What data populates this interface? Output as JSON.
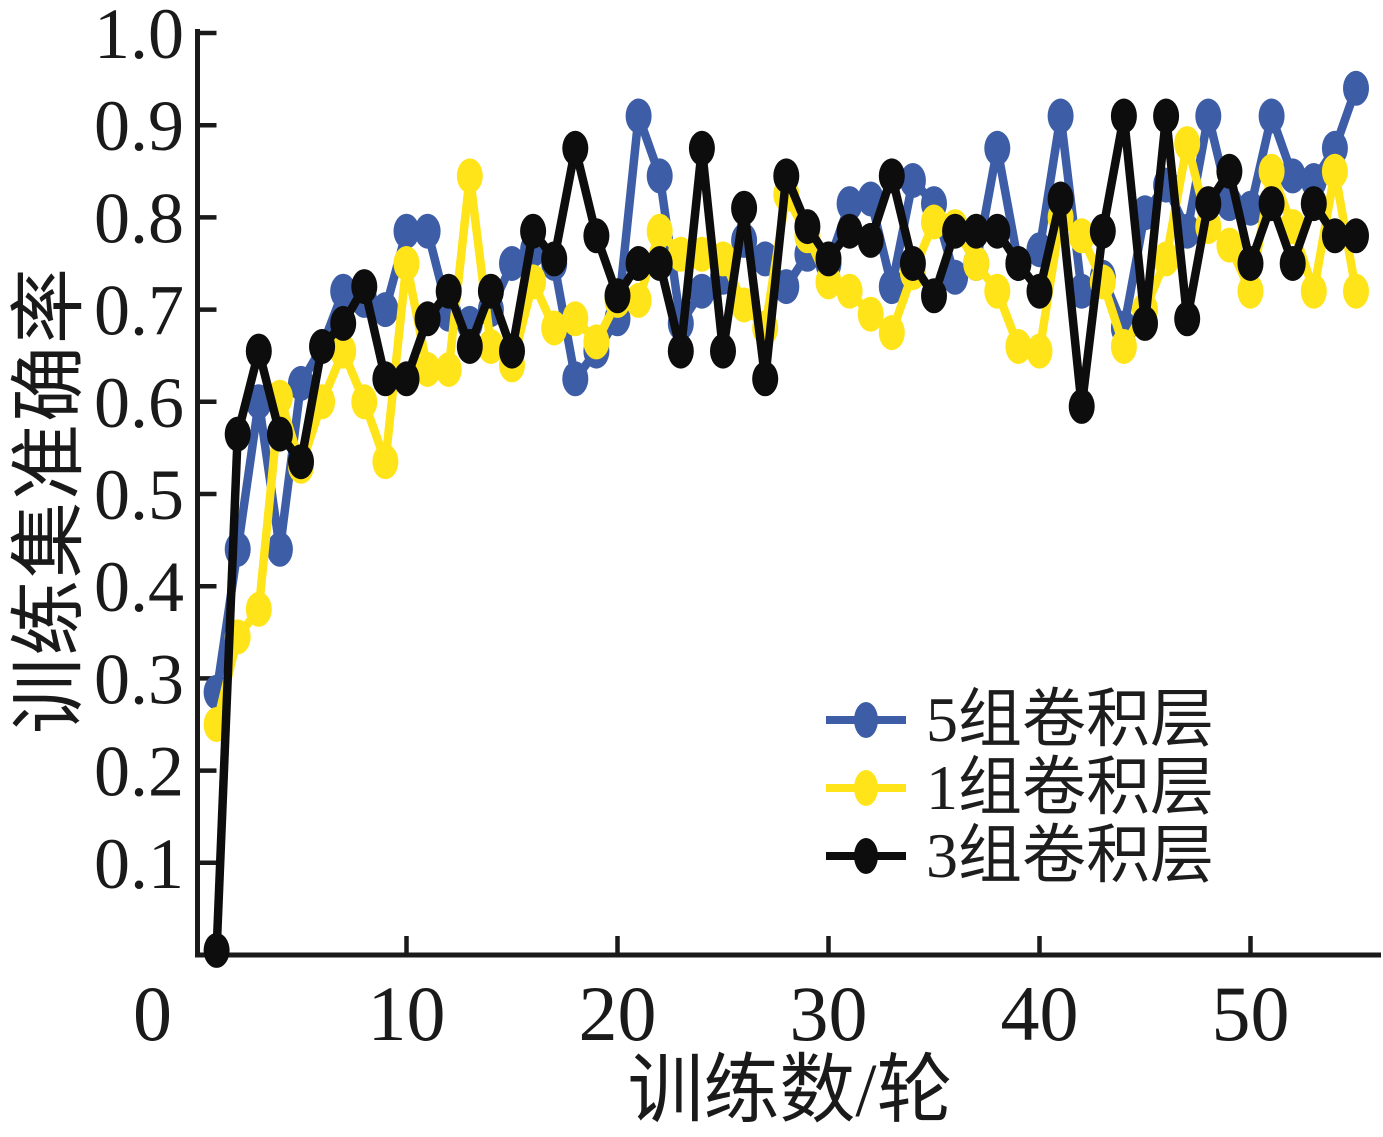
{
  "chart_data": {
    "type": "line",
    "title": "",
    "xlabel": "训练数/轮",
    "ylabel": "训练集准确率",
    "x": [
      1,
      2,
      3,
      4,
      5,
      6,
      7,
      8,
      9,
      10,
      11,
      12,
      13,
      14,
      15,
      16,
      17,
      18,
      19,
      20,
      21,
      22,
      23,
      24,
      25,
      26,
      27,
      28,
      29,
      30,
      31,
      32,
      33,
      34,
      35,
      36,
      37,
      38,
      39,
      40,
      41,
      42,
      43,
      44,
      45,
      46,
      47,
      48,
      49,
      50,
      51,
      52,
      53,
      54,
      55
    ],
    "series": [
      {
        "name": "5组卷积层",
        "color": "#3d5da7",
        "values": [
          0.285,
          0.44,
          0.6,
          0.44,
          0.62,
          0.66,
          0.72,
          0.71,
          0.7,
          0.785,
          0.785,
          0.695,
          0.685,
          0.7,
          0.75,
          0.765,
          0.75,
          0.625,
          0.655,
          0.69,
          0.91,
          0.845,
          0.685,
          0.72,
          0.735,
          0.775,
          0.755,
          0.725,
          0.76,
          0.75,
          0.815,
          0.82,
          0.725,
          0.84,
          0.815,
          0.735,
          0.75,
          0.875,
          0.75,
          0.765,
          0.91,
          0.72,
          0.735,
          0.68,
          0.805,
          0.835,
          0.785,
          0.91,
          0.815,
          0.81,
          0.91,
          0.845,
          0.84,
          0.875,
          0.94
        ]
      },
      {
        "name": "1组卷积层",
        "color": "#ffe41a",
        "values": [
          0.25,
          0.345,
          0.375,
          0.605,
          0.53,
          0.6,
          0.655,
          0.6,
          0.535,
          0.75,
          0.635,
          0.635,
          0.845,
          0.66,
          0.64,
          0.73,
          0.68,
          0.69,
          0.665,
          0.71,
          0.71,
          0.785,
          0.76,
          0.76,
          0.755,
          0.705,
          0.68,
          0.825,
          0.78,
          0.73,
          0.72,
          0.695,
          0.675,
          0.74,
          0.795,
          0.79,
          0.75,
          0.72,
          0.66,
          0.655,
          0.8,
          0.78,
          0.73,
          0.66,
          0.7,
          0.755,
          0.88,
          0.79,
          0.77,
          0.72,
          0.85,
          0.79,
          0.72,
          0.85,
          0.72
        ]
      },
      {
        "name": "3组卷积层",
        "color": "#0d0d0d",
        "values": [
          0.005,
          0.565,
          0.655,
          0.565,
          0.535,
          0.66,
          0.685,
          0.725,
          0.625,
          0.625,
          0.69,
          0.72,
          0.66,
          0.72,
          0.655,
          0.785,
          0.755,
          0.875,
          0.78,
          0.715,
          0.75,
          0.75,
          0.655,
          0.875,
          0.655,
          0.81,
          0.625,
          0.845,
          0.79,
          0.755,
          0.785,
          0.775,
          0.845,
          0.75,
          0.715,
          0.785,
          0.785,
          0.785,
          0.75,
          0.72,
          0.82,
          0.595,
          0.785,
          0.91,
          0.685,
          0.91,
          0.69,
          0.815,
          0.85,
          0.75,
          0.815,
          0.75,
          0.815,
          0.78,
          0.78
        ]
      }
    ],
    "xlim": [
      0,
      56.3
    ],
    "ylim": [
      0,
      1.0
    ],
    "xticks": [
      0,
      10,
      20,
      30,
      40,
      50
    ],
    "xtick_labels": [
      "0",
      "10",
      "20",
      "30",
      "40",
      "50"
    ],
    "yticks": [
      0.1,
      0.2,
      0.3,
      0.4,
      0.5,
      0.6,
      0.7,
      0.8,
      0.9,
      1.0
    ],
    "ytick_labels": [
      "0.1",
      "0.2",
      "0.3",
      "0.4",
      "0.5",
      "0.6",
      "0.7",
      "0.8",
      "0.9",
      "1.0"
    ],
    "grid": false,
    "legend_position": "lower-right-inside",
    "axis_color": "#1a1a1a",
    "marker": "ellipse"
  }
}
